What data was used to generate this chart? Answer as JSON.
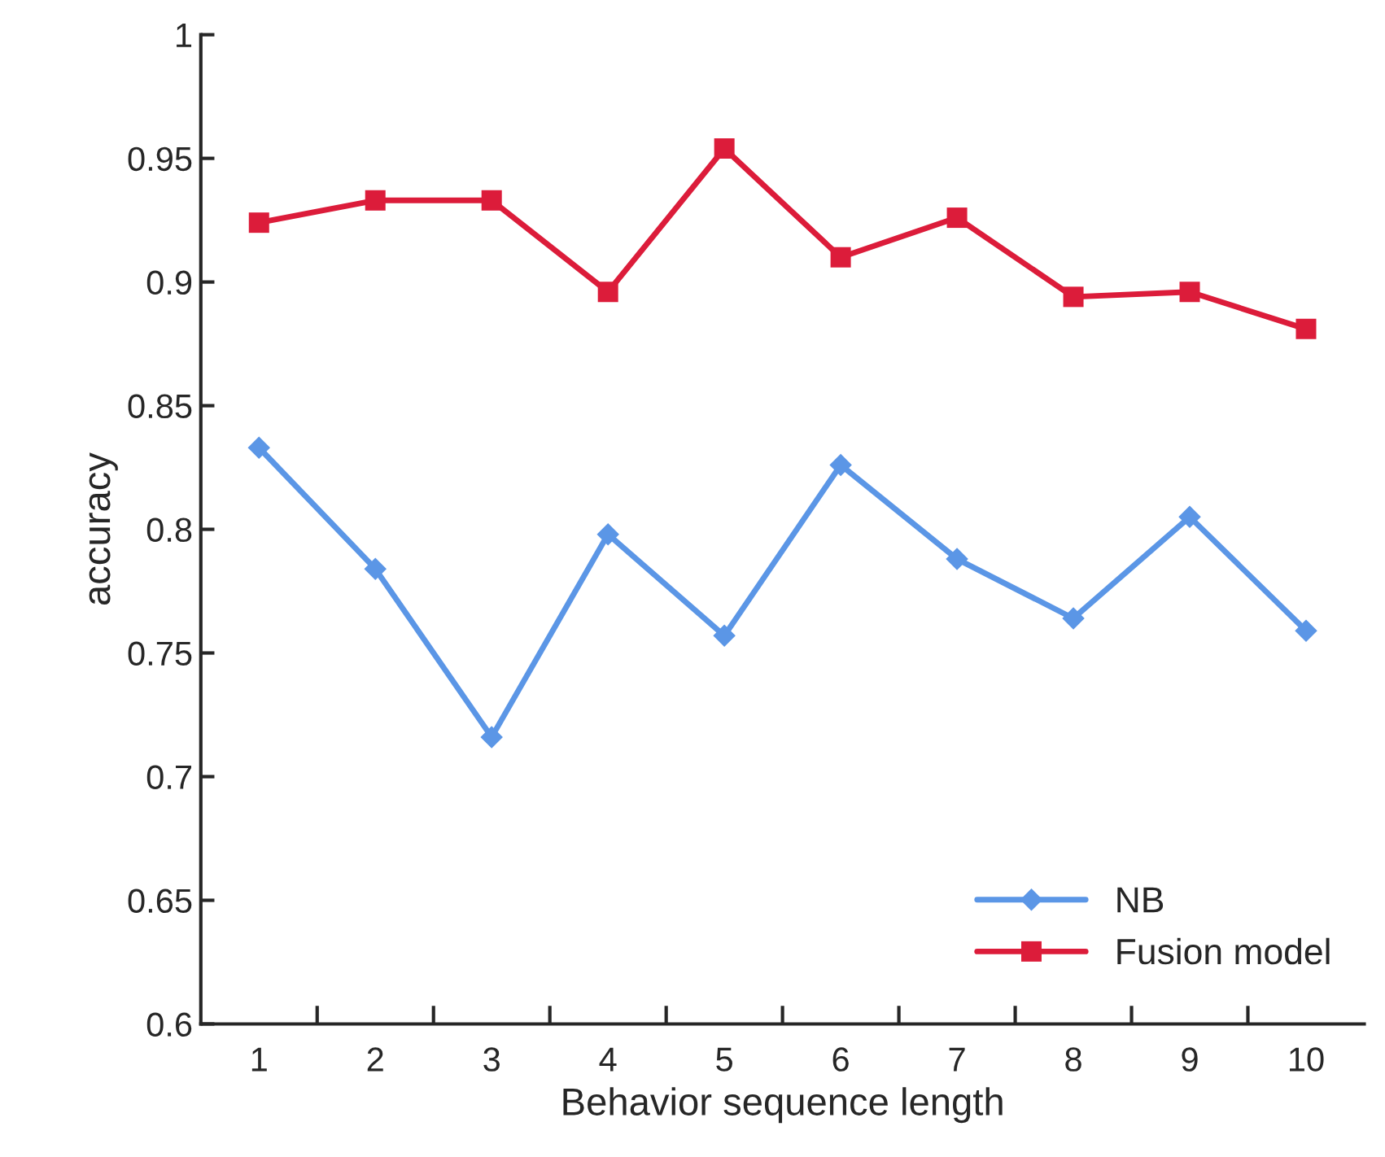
{
  "chart_data": {
    "type": "line",
    "xlabel": "Behavior sequence length",
    "ylabel": "accuracy",
    "categories": [
      "1",
      "2",
      "3",
      "4",
      "5",
      "6",
      "7",
      "8",
      "9",
      "10"
    ],
    "series": [
      {
        "name": "NB",
        "color": "#5b96e6",
        "marker": "diamond",
        "values": [
          0.833,
          0.784,
          0.716,
          0.798,
          0.757,
          0.826,
          0.788,
          0.764,
          0.805,
          0.759
        ]
      },
      {
        "name": "Fusion model",
        "color": "#dc1c3a",
        "marker": "square",
        "values": [
          0.924,
          0.933,
          0.933,
          0.896,
          0.954,
          0.91,
          0.926,
          0.894,
          0.896,
          0.881
        ]
      }
    ],
    "ylim": [
      0.6,
      1
    ],
    "yticks": [
      0.6,
      0.65,
      0.7,
      0.75,
      0.8,
      0.85,
      0.9,
      0.95,
      1
    ],
    "grid": false,
    "legend": "bottom right",
    "line_style": "solid"
  }
}
